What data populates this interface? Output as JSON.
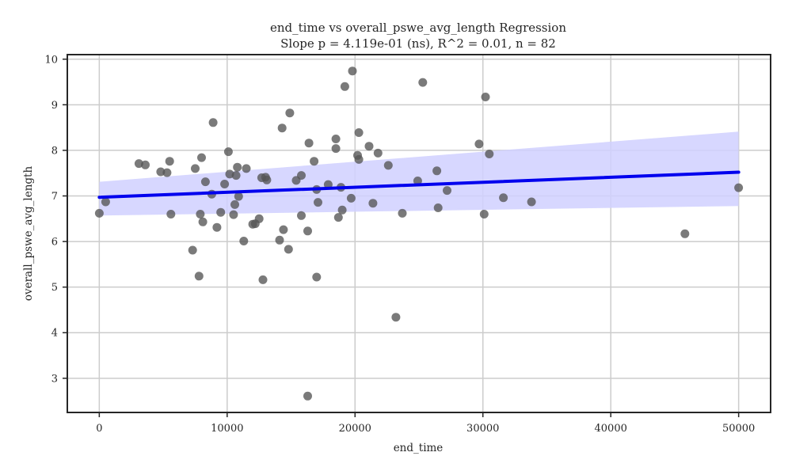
{
  "chart_data": {
    "type": "scatter",
    "title": "end_time vs overall_pswe_avg_length Regression",
    "subtitle": "Slope p = 4.119e-01 (ns), R^2 = 0.01, n = 82",
    "xlabel": "end_time",
    "ylabel": "overall_pswe_avg_length",
    "xlim": [
      -2500,
      52500
    ],
    "ylim": [
      2.25,
      10.1
    ],
    "xticks": [
      0,
      10000,
      20000,
      30000,
      40000,
      50000
    ],
    "yticks": [
      3,
      4,
      5,
      6,
      7,
      8,
      9,
      10
    ],
    "grid": true,
    "colors": {
      "points": "#555555",
      "line": "#0000ee",
      "band": "#d0d0ff"
    },
    "regression": {
      "x": [
        0,
        50000
      ],
      "y": [
        6.97,
        7.52
      ],
      "ci_lower": [
        6.57,
        6.78
      ],
      "ci_upper": [
        7.31,
        8.41
      ]
    },
    "points": [
      [
        0,
        6.62
      ],
      [
        500,
        6.87
      ],
      [
        3100,
        7.71
      ],
      [
        3600,
        7.68
      ],
      [
        4800,
        7.53
      ],
      [
        5300,
        7.51
      ],
      [
        5500,
        7.76
      ],
      [
        5600,
        6.6
      ],
      [
        7300,
        5.81
      ],
      [
        7500,
        7.6
      ],
      [
        7800,
        5.24
      ],
      [
        7900,
        6.6
      ],
      [
        8000,
        7.84
      ],
      [
        8100,
        6.43
      ],
      [
        8300,
        7.31
      ],
      [
        8800,
        7.04
      ],
      [
        8900,
        8.61
      ],
      [
        9200,
        6.31
      ],
      [
        9500,
        6.64
      ],
      [
        9800,
        7.26
      ],
      [
        10100,
        7.97
      ],
      [
        10200,
        7.48
      ],
      [
        10500,
        6.59
      ],
      [
        10600,
        6.81
      ],
      [
        10700,
        7.45
      ],
      [
        10800,
        7.63
      ],
      [
        10900,
        6.99
      ],
      [
        11300,
        6.01
      ],
      [
        11500,
        7.6
      ],
      [
        12000,
        6.38
      ],
      [
        12200,
        6.39
      ],
      [
        12500,
        6.5
      ],
      [
        12700,
        7.4
      ],
      [
        12800,
        5.16
      ],
      [
        13000,
        7.41
      ],
      [
        13100,
        7.35
      ],
      [
        14100,
        6.03
      ],
      [
        14300,
        8.49
      ],
      [
        14400,
        6.26
      ],
      [
        14800,
        5.83
      ],
      [
        14900,
        8.82
      ],
      [
        15400,
        7.34
      ],
      [
        15800,
        7.45
      ],
      [
        15800,
        6.57
      ],
      [
        16300,
        6.23
      ],
      [
        16300,
        2.61
      ],
      [
        16400,
        8.16
      ],
      [
        16800,
        7.76
      ],
      [
        17000,
        5.22
      ],
      [
        17000,
        7.14
      ],
      [
        17100,
        6.86
      ],
      [
        17900,
        7.25
      ],
      [
        18500,
        8.25
      ],
      [
        18500,
        8.04
      ],
      [
        18700,
        6.53
      ],
      [
        18900,
        7.19
      ],
      [
        19000,
        6.69
      ],
      [
        19200,
        9.4
      ],
      [
        19700,
        6.95
      ],
      [
        19800,
        9.74
      ],
      [
        20200,
        7.89
      ],
      [
        20300,
        8.39
      ],
      [
        20300,
        7.8
      ],
      [
        21100,
        8.09
      ],
      [
        21400,
        6.84
      ],
      [
        21800,
        7.94
      ],
      [
        22600,
        7.67
      ],
      [
        23200,
        4.34
      ],
      [
        23700,
        6.62
      ],
      [
        24900,
        7.33
      ],
      [
        25300,
        9.49
      ],
      [
        26400,
        7.55
      ],
      [
        26500,
        6.74
      ],
      [
        27200,
        7.12
      ],
      [
        29700,
        8.14
      ],
      [
        30100,
        6.6
      ],
      [
        30200,
        9.17
      ],
      [
        30500,
        7.92
      ],
      [
        31600,
        6.96
      ],
      [
        33800,
        6.87
      ],
      [
        45800,
        6.17
      ],
      [
        50000,
        7.18
      ]
    ]
  }
}
